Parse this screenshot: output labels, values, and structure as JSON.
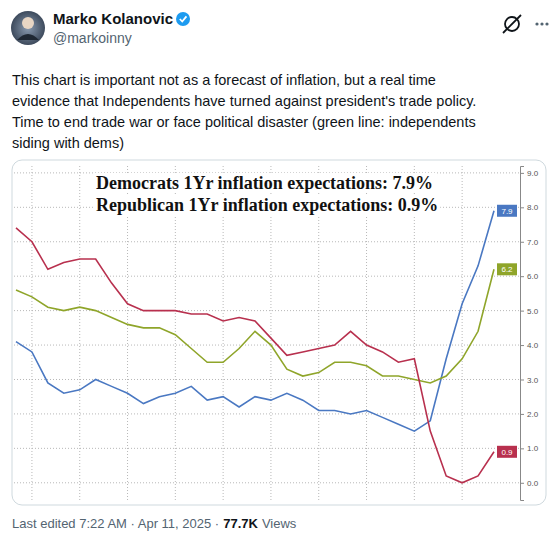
{
  "tweet": {
    "name": "Marko Kolanovic",
    "handle": "@markoinny",
    "text_lines": [
      "This chart is important not as a forecast of inflation, but a real time",
      "evidence that Independents have turned against president's trade policy.",
      "Time to end trade war or face political disaster (green line: independents",
      "siding with dems)"
    ],
    "footer": [
      "Last edited 7:22 AM · Apr 11, 2025 ·",
      "77.7K",
      "Views"
    ]
  },
  "chart_data": {
    "type": "line",
    "annotations": [
      "Democrats 1Yr inflation expectations: 7.9%",
      "Republican 1Yr inflation expectations: 0.9%"
    ],
    "categories": [
      null,
      null,
      null,
      null,
      null,
      null,
      null,
      null,
      null,
      null,
      null,
      null,
      null,
      null,
      null,
      null,
      null,
      null,
      null,
      null,
      null,
      null,
      null,
      null,
      null,
      null,
      null,
      null,
      null,
      null,
      null
    ],
    "series": [
      {
        "color": "#4a78c2",
        "values": [
          4.1,
          3.8,
          2.9,
          2.6,
          2.7,
          3.0,
          2.8,
          2.6,
          2.3,
          2.5,
          2.6,
          2.8,
          2.4,
          2.5,
          2.2,
          2.5,
          2.4,
          2.6,
          2.4,
          2.1,
          2.1,
          2.0,
          2.1,
          1.9,
          1.7,
          1.5,
          1.8,
          3.6,
          5.2,
          6.3,
          7.9
        ]
      },
      {
        "color": "#8fa52a",
        "values": [
          5.6,
          5.4,
          5.1,
          5.0,
          5.1,
          5.0,
          4.8,
          4.6,
          4.5,
          4.5,
          4.3,
          3.9,
          3.5,
          3.5,
          3.9,
          4.4,
          4.0,
          3.3,
          3.1,
          3.2,
          3.5,
          3.5,
          3.4,
          3.1,
          3.1,
          3.0,
          2.9,
          3.1,
          3.6,
          4.4,
          6.2
        ]
      },
      {
        "color": "#b8304e",
        "values": [
          7.4,
          7.0,
          6.2,
          6.4,
          6.5,
          6.5,
          5.8,
          5.2,
          5.0,
          5.0,
          5.0,
          4.9,
          4.9,
          4.7,
          4.8,
          4.7,
          4.2,
          3.7,
          3.8,
          3.9,
          4.0,
          4.4,
          4.0,
          3.8,
          3.5,
          3.6,
          1.5,
          0.2,
          0.0,
          0.2,
          0.9
        ]
      }
    ],
    "ylim": [
      -0.5,
      9.2
    ],
    "yticks": [
      {
        "value": 0,
        "label": "0.0"
      },
      {
        "value": 1,
        "label": "1.0"
      },
      {
        "value": 2,
        "label": "2.0"
      },
      {
        "value": 3,
        "label": "3.0"
      },
      {
        "value": 4,
        "label": "4.0"
      },
      {
        "value": 5,
        "label": "5.0"
      },
      {
        "value": 6,
        "label": "6.0"
      },
      {
        "value": 7,
        "label": "7.0"
      },
      {
        "value": 8,
        "label": "8.0"
      },
      {
        "value": 9,
        "label": "9.0"
      }
    ],
    "grid": true,
    "data_labels": true,
    "tick_labels": "y"
  }
}
